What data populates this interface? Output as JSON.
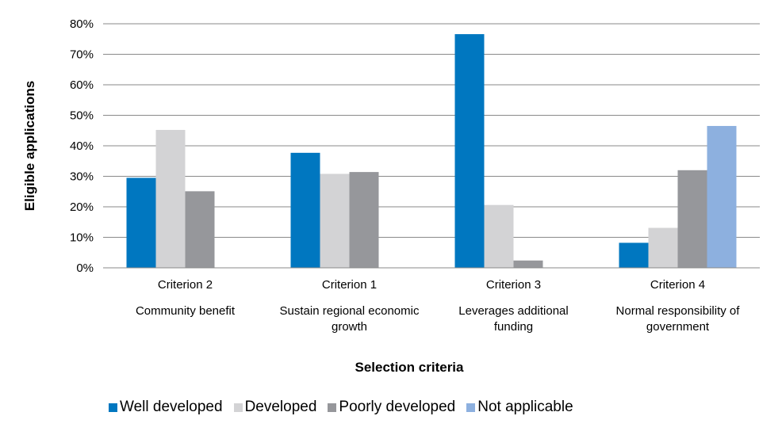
{
  "chart_data": {
    "type": "bar",
    "title": "",
    "xlabel": "Selection criteria",
    "ylabel": "Eligible applications",
    "ylim": [
      0,
      80
    ],
    "yticks": [
      "0%",
      "10%",
      "20%",
      "30%",
      "40%",
      "50%",
      "60%",
      "70%",
      "80%"
    ],
    "grid": true,
    "legend_position": "bottom",
    "categories": [
      {
        "line1": "Criterion 2",
        "line2": "Community benefit",
        "line3": ""
      },
      {
        "line1": "Criterion 1",
        "line2": "Sustain regional economic",
        "line3": "growth"
      },
      {
        "line1": "Criterion 3",
        "line2": "Leverages additional",
        "line3": "funding"
      },
      {
        "line1": "Criterion 4",
        "line2": "Normal responsibility of",
        "line3": "government"
      }
    ],
    "series": [
      {
        "name": "Well developed",
        "color": "#0077c0",
        "values": [
          29.5,
          37.7,
          76.6,
          8.2
        ]
      },
      {
        "name": "Developed",
        "color": "#d3d3d5",
        "values": [
          45.2,
          30.8,
          20.6,
          13.1
        ]
      },
      {
        "name": "Poorly developed",
        "color": "#96979b",
        "values": [
          25.1,
          31.4,
          2.4,
          32.0
        ]
      },
      {
        "name": "Not applicable",
        "color": "#8db0df",
        "values": [
          0,
          0,
          0,
          46.5
        ]
      }
    ]
  }
}
